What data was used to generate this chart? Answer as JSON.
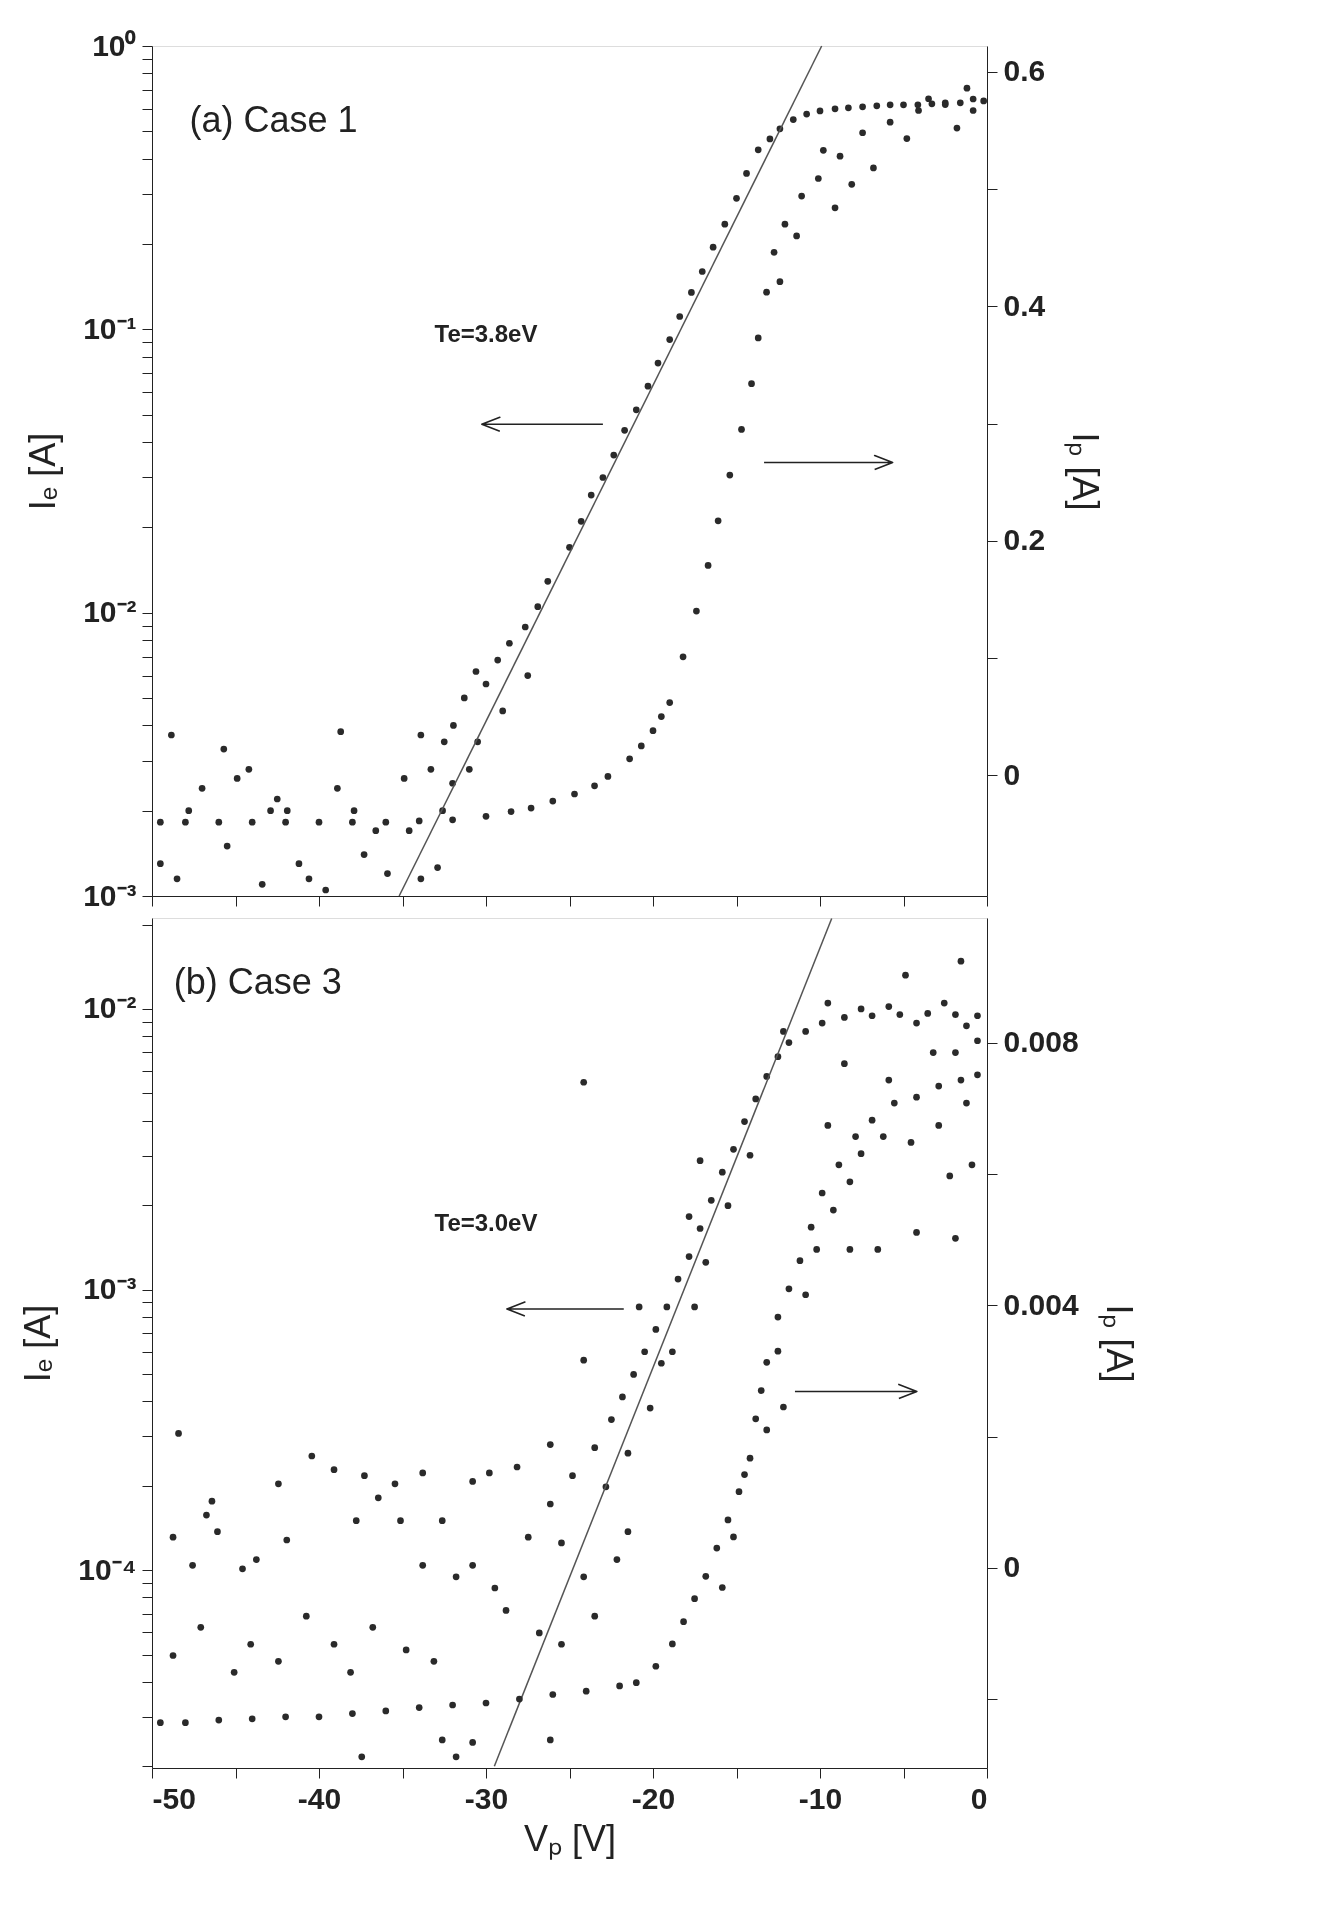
{
  "chart_data": [
    {
      "type": "scatter",
      "ylabel": "Iₑ [A]",
      "y2label": "Iₚ [A]",
      "log": true,
      "marker": "circle",
      "tick_labels": "y",
      "xlim": [
        -50,
        0
      ],
      "ylim": [
        0.001,
        1
      ],
      "y2lim": [
        -0.103,
        0.622
      ],
      "xticks": [
        -50,
        {
          "value": -45,
          "label": null
        },
        -40,
        {
          "value": -35,
          "label": null
        },
        -30,
        {
          "value": -25,
          "label": null
        },
        -20,
        {
          "value": -15,
          "label": null
        },
        -10,
        {
          "value": -5,
          "label": null
        },
        0
      ],
      "yticks": [
        {
          "value": 0.001,
          "label": "10⁻³"
        },
        {
          "value": 0.002,
          "label": null
        },
        {
          "value": 0.003,
          "label": null
        },
        {
          "value": 0.004,
          "label": null
        },
        {
          "value": 0.005,
          "label": null
        },
        {
          "value": 0.006,
          "label": null
        },
        {
          "value": 0.007,
          "label": null
        },
        {
          "value": 0.008,
          "label": null
        },
        {
          "value": 0.009,
          "label": null
        },
        {
          "value": 0.01,
          "label": "10⁻²"
        },
        {
          "value": 0.02,
          "label": null
        },
        {
          "value": 0.03,
          "label": null
        },
        {
          "value": 0.04,
          "label": null
        },
        {
          "value": 0.05,
          "label": null
        },
        {
          "value": 0.06,
          "label": null
        },
        {
          "value": 0.07,
          "label": null
        },
        {
          "value": 0.08,
          "label": null
        },
        {
          "value": 0.09,
          "label": null
        },
        {
          "value": 0.1,
          "label": "10⁻¹"
        },
        {
          "value": 0.2,
          "label": null
        },
        {
          "value": 0.3,
          "label": null
        },
        {
          "value": 0.4,
          "label": null
        },
        {
          "value": 0.5,
          "label": null
        },
        {
          "value": 0.6,
          "label": null
        },
        {
          "value": 0.7,
          "label": null
        },
        {
          "value": 0.8,
          "label": null
        },
        {
          "value": 0.9,
          "label": null
        },
        {
          "value": 1,
          "label": "10⁰"
        }
      ],
      "y2ticks": [
        0,
        {
          "value": 0.1,
          "label": null
        },
        0.2,
        {
          "value": 0.3,
          "label": null
        },
        0.4,
        {
          "value": 0.5,
          "label": null
        },
        0.6
      ],
      "annotations": [
        "(a) Case 1",
        "Te=3.8eV"
      ],
      "series": [
        {
          "color": "#2a2a2a",
          "x": [
            -48.84,
            -45.7,
            -44.2,
            -47.0,
            -38.7,
            -49.5,
            -48.5,
            -45.5,
            -43.4,
            -41.9,
            -40.6,
            -39.6,
            -37.9,
            -37.3,
            -36.6,
            -35.9,
            -42.5,
            -41.2,
            -34.9,
            -33.9,
            -33.3,
            -32.6,
            -34.6,
            -33.9,
            -32.9,
            -42.9,
            -44.9,
            -47.8,
            -38.9,
            -32.5,
            -31.95,
            -31.3,
            -30.6,
            -30.0,
            -29.3,
            -28.6,
            -27.65,
            -26.9,
            -26.3,
            -25.0,
            -24.3,
            -23.7,
            -23.0,
            -22.35,
            -21.7,
            -21.0,
            -20.3,
            -19.7,
            -19.0,
            -18.4,
            -17.7,
            -17.05,
            -16.4,
            -15.7,
            -15.0,
            -14.4,
            -13.7,
            -13.0,
            -12.4,
            -11.6,
            -10.8,
            -10.0,
            -9.1,
            -8.3,
            -7.45,
            -6.6,
            -5.8,
            -5.0,
            -4.14,
            -3.3,
            -2.5,
            -1.6,
            -0.83,
            -0.2,
            -30.5,
            -29.0,
            -27.5,
            -31.0,
            -32.0
          ],
          "values": [
            0.0037,
            0.0033,
            0.0028,
            0.0024,
            0.0038,
            0.0013,
            0.00115,
            0.0015,
            0.0011,
            0.002,
            0.00115,
            0.00105,
            0.002,
            0.0014,
            0.0017,
            0.0012,
            0.0022,
            0.0013,
            0.0026,
            0.0037,
            0.0028,
            0.002,
            0.0017,
            0.00115,
            0.00126,
            0.002,
            0.0026,
            0.002,
            0.0024,
            0.0035,
            0.004,
            0.005,
            0.0062,
            0.0056,
            0.0068,
            0.0078,
            0.0089,
            0.0105,
            0.0129,
            0.017,
            0.021,
            0.026,
            0.03,
            0.036,
            0.044,
            0.052,
            0.063,
            0.076,
            0.092,
            0.111,
            0.135,
            0.16,
            0.195,
            0.235,
            0.29,
            0.355,
            0.43,
            0.47,
            0.51,
            0.55,
            0.575,
            0.59,
            0.6,
            0.605,
            0.61,
            0.615,
            0.62,
            0.62,
            0.62,
            0.625,
            0.63,
            0.63,
            0.65,
            0.64,
            0.0035,
            0.0045,
            0.006,
            0.0028,
            0.0025
          ]
        },
        {
          "axis": "y2",
          "color": "#2a2a2a",
          "x": [
            -49.5,
            -48,
            -46,
            -44,
            -42,
            -40,
            -38,
            -36,
            -34,
            -32,
            -30.0,
            -28.5,
            -27.3,
            -26,
            -24.7,
            -23.5,
            -22.7,
            -21.4,
            -20.7,
            -20.0,
            -19.5,
            -19.0,
            -18.2,
            -17.4,
            -16.7,
            -16.1,
            -15.4,
            -14.7,
            -14.1,
            -13.7,
            -13.2,
            -12.75,
            -12.1,
            -11.1,
            -10.1,
            -8.8,
            -7.45,
            -5.8,
            -4.1,
            -2.5,
            -0.83,
            -9.8,
            -8.1,
            -6.8,
            -4.8,
            -3.5,
            -1.2,
            -1.8,
            -11.4,
            -9.1,
            -12.4
          ],
          "values": [
            -0.04,
            -0.04,
            -0.04,
            -0.04,
            -0.04,
            -0.04,
            -0.04,
            -0.04,
            -0.039,
            -0.038,
            -0.035,
            -0.031,
            -0.028,
            -0.022,
            -0.016,
            -0.009,
            -0.001,
            0.014,
            0.025,
            0.038,
            0.05,
            0.062,
            0.101,
            0.14,
            0.179,
            0.217,
            0.256,
            0.295,
            0.334,
            0.373,
            0.412,
            0.446,
            0.47,
            0.494,
            0.509,
            0.528,
            0.548,
            0.557,
            0.567,
            0.572,
            0.567,
            0.533,
            0.504,
            0.518,
            0.543,
            0.577,
            0.586,
            0.552,
            0.46,
            0.484,
            0.421
          ]
        },
        {
          "type": "line",
          "marker": "none",
          "color": "#555555",
          "line_style": "solid",
          "x": [
            -35.2,
            -9.9
          ],
          "values": [
            0.001,
            1.0
          ]
        }
      ]
    },
    {
      "type": "scatter",
      "xlabel": "Vₚ [V]",
      "ylabel": "Iₑ [A]",
      "y2label": "Iₚ [A]",
      "log": true,
      "marker": "circle",
      "xlim": [
        -50,
        0
      ],
      "ylim": [
        1.97e-05,
        0.0211
      ],
      "y2lim": [
        -0.00305,
        0.0099
      ],
      "xticks": [
        -50,
        {
          "value": -45,
          "label": null
        },
        -40,
        {
          "value": -35,
          "label": null
        },
        -30,
        {
          "value": -25,
          "label": null
        },
        -20,
        {
          "value": -15,
          "label": null
        },
        -10,
        {
          "value": -5,
          "label": null
        },
        0
      ],
      "yticks": [
        {
          "value": 2e-05,
          "label": null
        },
        {
          "value": 3e-05,
          "label": null
        },
        {
          "value": 4e-05,
          "label": null
        },
        {
          "value": 5e-05,
          "label": null
        },
        {
          "value": 6e-05,
          "label": null
        },
        {
          "value": 7e-05,
          "label": null
        },
        {
          "value": 8e-05,
          "label": null
        },
        {
          "value": 9e-05,
          "label": null
        },
        {
          "value": 0.0001,
          "label": "10⁻⁴"
        },
        {
          "value": 0.0002,
          "label": null
        },
        {
          "value": 0.0003,
          "label": null
        },
        {
          "value": 0.0004,
          "label": null
        },
        {
          "value": 0.0005,
          "label": null
        },
        {
          "value": 0.0006,
          "label": null
        },
        {
          "value": 0.0007,
          "label": null
        },
        {
          "value": 0.0008,
          "label": null
        },
        {
          "value": 0.0009,
          "label": null
        },
        {
          "value": 0.001,
          "label": "10⁻³"
        },
        {
          "value": 0.002,
          "label": null
        },
        {
          "value": 0.003,
          "label": null
        },
        {
          "value": 0.004,
          "label": null
        },
        {
          "value": 0.005,
          "label": null
        },
        {
          "value": 0.006,
          "label": null
        },
        {
          "value": 0.007,
          "label": null
        },
        {
          "value": 0.008,
          "label": null
        },
        {
          "value": 0.009,
          "label": null
        },
        {
          "value": 0.01,
          "label": "10⁻²"
        },
        {
          "value": 0.02,
          "label": null
        }
      ],
      "y2ticks": [
        {
          "value": -0.002,
          "label": null
        },
        0,
        {
          "value": 0.002,
          "label": null
        },
        0.004,
        {
          "value": 0.006,
          "label": null
        },
        0.008
      ],
      "annotations": [
        "(b) Case 3",
        "Te=3.0eV"
      ],
      "series": [
        {
          "color": "#2a2a2a",
          "x": [
            -48.41,
            -46.41,
            -46.74,
            -48.74,
            -47.57,
            -46.08,
            -44.58,
            -43.75,
            -42.43,
            -41.93,
            -40.43,
            -39.1,
            -37.28,
            -35.45,
            -33.79,
            -37.77,
            -36.45,
            -35.12,
            -33.79,
            -32.62,
            -30.8,
            -29.8,
            -28.14,
            -26.15,
            -30.8,
            -29.47,
            -31.79,
            -40.76,
            -39.1,
            -36.78,
            -34.78,
            -33.12,
            -44.09,
            -47.08,
            -45.08,
            -48.74,
            -42.43,
            -38.11,
            -28.8,
            -26.81,
            -25.48,
            -24.15,
            -23.49,
            -22.16,
            -21.5,
            -24.15,
            -24.15,
            -32.62,
            -30.8,
            -26.15,
            -37.44,
            -31.79,
            -27.47,
            -26.15,
            -24.82,
            -23.49,
            -22.49,
            -21.83,
            -21.16,
            -20.5,
            -19.83,
            -19.17,
            -18.5,
            -17.84,
            -17.18,
            -16.51,
            -15.85,
            -15.18,
            -14.52,
            -13.85,
            -13.19,
            -12.52,
            -11.86,
            -10.86,
            -9.87,
            -8.54,
            -6.88,
            -5.22,
            -3.55,
            -1.89,
            -0.57,
            -25.48,
            -22.82,
            -21.5,
            -20.17,
            -19.5,
            -20.83,
            -18.84,
            -17.51,
            -16.84,
            -17.84,
            -15.51,
            -14.19,
            -17.18,
            -12.19,
            -9.53,
            -7.54,
            -5.88,
            -4.22,
            -2.56,
            -1.23,
            -4.88,
            -1.56
          ],
          "values": [
            0.000307,
            0.000176,
            0.000157,
            0.000131,
            0.000104,
            0.000137,
            0.000101,
            0.000109,
            0.000203,
            0.000128,
            0.000255,
            0.000228,
            0.000217,
            0.000203,
            0.000222,
            0.00015,
            0.000181,
            0.00015,
            0.000104,
            0.00015,
            0.000207,
            0.000222,
            0.000233,
            0.00028,
            0.000104,
            8.63e-05,
            9.46e-05,
            6.85e-05,
            5.44e-05,
            6.25e-05,
            5.19e-05,
            4.73e-05,
            5.44e-05,
            6.25e-05,
            4.32e-05,
            4.96e-05,
            4.73e-05,
            4.32e-05,
            7.18e-05,
            5.97e-05,
            5.44e-05,
            9.46e-05,
            6.85e-05,
            0.000109,
            0.000137,
            0.00548,
            0.00056,
            2.48e-05,
            2.43e-05,
            2.48e-05,
            2.16e-05,
            2.16e-05,
            0.000131,
            0.000172,
            0.000217,
            0.000273,
            0.000344,
            0.000414,
            0.000498,
            0.0006,
            0.000721,
            0.000867,
            0.00109,
            0.00131,
            0.00165,
            0.00208,
            0.00262,
            0.00316,
            0.00397,
            0.00478,
            0.00575,
            0.00676,
            0.00759,
            0.00832,
            0.00891,
            0.00933,
            0.00946,
            0.00955,
            0.00964,
            0.00955,
            0.00946,
            0.000125,
            0.000198,
            0.000261,
            0.000378,
            0.000546,
            0.000867,
            0.0006,
            0.000867,
            0.00125,
            0.00182,
            0.00199,
            0.00301,
            0.00288,
            0.00832,
            0.0105,
            0.01,
            0.0102,
            0.00891,
            0.0105,
            0.00871,
            0.0132,
            0.0148
          ]
        },
        {
          "axis": "y2",
          "color": "#2a2a2a",
          "x": [
            -49.5,
            -48,
            -46,
            -44,
            -42,
            -40,
            -38,
            -36,
            -34,
            -32,
            -30,
            -28,
            -26,
            -24,
            -22,
            -21,
            -19.83,
            -18.84,
            -18.17,
            -17.51,
            -16.84,
            -16.18,
            -15.51,
            -14.85,
            -14.19,
            -13.85,
            -13.52,
            -13.19,
            -12.52,
            -11.86,
            -11.2,
            -10.53,
            -9.87,
            -8.87,
            -7.87,
            -6.88,
            -5.55,
            -4.22,
            -2.89,
            -1.56,
            -0.57,
            -15.85,
            -15.18,
            -14.52,
            -13.19,
            -12.19,
            -12.52,
            -10.86,
            -10.2,
            -9.2,
            -8.21,
            -9.53,
            -7.54,
            -6.21,
            -8.54,
            -5.88,
            -4.55,
            -2.23,
            -0.9,
            -1.89,
            -4.22,
            -6.54,
            -8.21,
            -0.57,
            -1.89,
            -3.22,
            -1.23,
            -2.89
          ],
          "values": [
            -0.00236,
            -0.00236,
            -0.00232,
            -0.0023,
            -0.00227,
            -0.00227,
            -0.00222,
            -0.00218,
            -0.00213,
            -0.00209,
            -0.00206,
            -0.002,
            -0.00193,
            -0.00188,
            -0.0018,
            -0.00175,
            -0.0015,
            -0.00116,
            -0.00082,
            -0.00047,
            -0.00013,
            0.0003,
            0.00073,
            0.00116,
            0.00167,
            0.00227,
            0.0027,
            0.00313,
            0.00382,
            0.00425,
            0.00468,
            0.00519,
            0.00571,
            0.00614,
            0.00657,
            0.00682,
            0.00708,
            0.00717,
            0.00734,
            0.00743,
            0.00751,
            -0.0003,
            0.00047,
            0.00142,
            0.0021,
            0.00245,
            0.0033,
            0.00416,
            0.00485,
            0.00545,
            0.00588,
            0.00674,
            0.00631,
            0.00657,
            0.00768,
            0.00743,
            0.00648,
            0.00597,
            0.00614,
            0.00502,
            0.00511,
            0.00485,
            0.00485,
            0.00803,
            0.00785,
            0.00785,
            0.00708,
            0.00674
          ]
        },
        {
          "type": "line",
          "marker": "none",
          "color": "#555555",
          "line_style": "solid",
          "x": [
            -29.5,
            -9.3
          ],
          "values": [
            2e-05,
            0.021
          ]
        }
      ]
    }
  ]
}
